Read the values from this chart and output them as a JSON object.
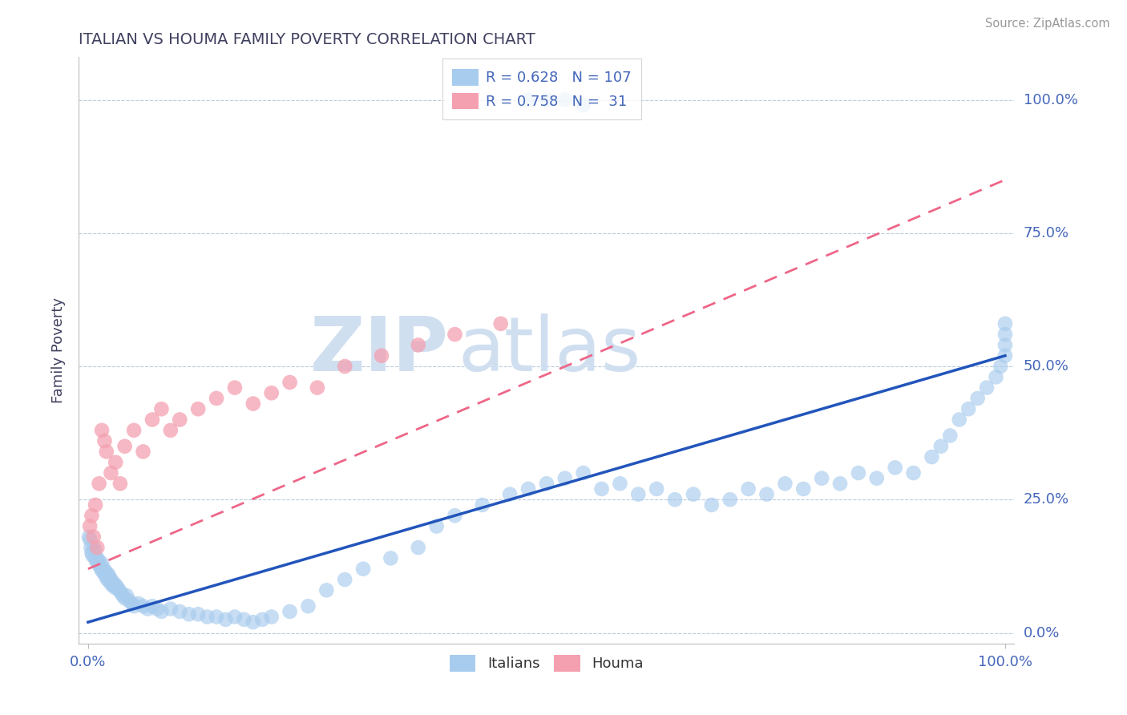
{
  "title": "ITALIAN VS HOUMA FAMILY POVERTY CORRELATION CHART",
  "source": "Source: ZipAtlas.com",
  "ylabel": "Family Poverty",
  "ytick_labels": [
    "0.0%",
    "25.0%",
    "50.0%",
    "75.0%",
    "100.0%"
  ],
  "ytick_values": [
    0,
    25,
    50,
    75,
    100
  ],
  "xlim": [
    -1,
    101
  ],
  "ylim": [
    -2,
    108
  ],
  "legend_r1": "R = 0.628",
  "legend_n1": "N = 107",
  "legend_r2": "R = 0.758",
  "legend_n2": "N =  31",
  "italian_color": "#A8CCEE",
  "houma_color": "#F4A0B0",
  "regression_italian_color": "#2255BB",
  "regression_houma_color": "#EE6688",
  "watermark_text": "ZIPatlas",
  "watermark_color": "#D0DFF0",
  "title_color": "#404060",
  "axis_label_color": "#4466BB",
  "tick_label_color": "#4466BB",
  "grid_color": "#BBCCDD",
  "background_color": "#FFFFFF",
  "italians_x": [
    0.1,
    0.2,
    0.3,
    0.4,
    0.5,
    0.6,
    0.7,
    0.8,
    0.9,
    1.0,
    1.1,
    1.2,
    1.3,
    1.4,
    1.5,
    1.6,
    1.7,
    1.8,
    1.9,
    2.0,
    2.1,
    2.2,
    2.3,
    2.4,
    2.5,
    2.6,
    2.7,
    2.8,
    2.9,
    3.0,
    3.2,
    3.4,
    3.6,
    3.8,
    4.0,
    4.2,
    4.5,
    4.8,
    5.0,
    5.5,
    6.0,
    6.5,
    7.0,
    7.5,
    8.0,
    9.0,
    10.0,
    11.0,
    12.0,
    13.0,
    14.0,
    15.0,
    16.0,
    17.0,
    18.0,
    19.0,
    20.0,
    22.0,
    24.0,
    26.0,
    28.0,
    30.0,
    33.0,
    36.0,
    38.0,
    40.0,
    43.0,
    46.0,
    48.0,
    50.0,
    52.0,
    54.0,
    56.0,
    58.0,
    60.0,
    62.0,
    64.0,
    66.0,
    68.0,
    70.0,
    72.0,
    74.0,
    76.0,
    78.0,
    80.0,
    82.0,
    84.0,
    86.0,
    88.0,
    90.0,
    92.0,
    93.0,
    94.0,
    95.0,
    96.0,
    97.0,
    98.0,
    99.0,
    99.5,
    100.0,
    100.0,
    100.0,
    100.0,
    48.0,
    50.0,
    52.0,
    54.0
  ],
  "italians_y": [
    18.0,
    17.5,
    16.0,
    15.0,
    14.5,
    16.0,
    15.5,
    14.0,
    13.5,
    14.0,
    13.0,
    13.5,
    12.5,
    12.0,
    13.0,
    11.5,
    12.0,
    11.0,
    11.5,
    10.5,
    10.0,
    11.0,
    10.5,
    9.5,
    10.0,
    9.0,
    9.5,
    9.0,
    8.5,
    9.0,
    8.5,
    8.0,
    7.5,
    7.0,
    6.5,
    7.0,
    6.0,
    5.5,
    5.0,
    5.5,
    5.0,
    4.5,
    5.0,
    4.5,
    4.0,
    4.5,
    4.0,
    3.5,
    3.5,
    3.0,
    3.0,
    2.5,
    3.0,
    2.5,
    2.0,
    2.5,
    3.0,
    4.0,
    5.0,
    8.0,
    10.0,
    12.0,
    14.0,
    16.0,
    20.0,
    22.0,
    24.0,
    26.0,
    27.0,
    28.0,
    29.0,
    30.0,
    27.0,
    28.0,
    26.0,
    27.0,
    25.0,
    26.0,
    24.0,
    25.0,
    27.0,
    26.0,
    28.0,
    27.0,
    29.0,
    28.0,
    30.0,
    29.0,
    31.0,
    30.0,
    33.0,
    35.0,
    37.0,
    40.0,
    42.0,
    44.0,
    46.0,
    48.0,
    50.0,
    52.0,
    54.0,
    56.0,
    58.0,
    100.0,
    100.0,
    100.0,
    99.0
  ],
  "houma_x": [
    0.2,
    0.4,
    0.6,
    0.8,
    1.0,
    1.2,
    1.5,
    1.8,
    2.0,
    2.5,
    3.0,
    3.5,
    4.0,
    5.0,
    6.0,
    7.0,
    8.0,
    9.0,
    10.0,
    12.0,
    14.0,
    16.0,
    18.0,
    20.0,
    22.0,
    25.0,
    28.0,
    32.0,
    36.0,
    40.0,
    45.0
  ],
  "houma_y": [
    20.0,
    22.0,
    18.0,
    24.0,
    16.0,
    28.0,
    38.0,
    36.0,
    34.0,
    30.0,
    32.0,
    28.0,
    35.0,
    38.0,
    34.0,
    40.0,
    42.0,
    38.0,
    40.0,
    42.0,
    44.0,
    46.0,
    43.0,
    45.0,
    47.0,
    46.0,
    50.0,
    52.0,
    54.0,
    56.0,
    58.0
  ],
  "ital_reg_x0": 0,
  "ital_reg_y0": 2.0,
  "ital_reg_x1": 100,
  "ital_reg_y1": 52.0,
  "houma_reg_x0": 0,
  "houma_reg_y0": 12.0,
  "houma_reg_x1": 100,
  "houma_reg_y1": 85.0
}
